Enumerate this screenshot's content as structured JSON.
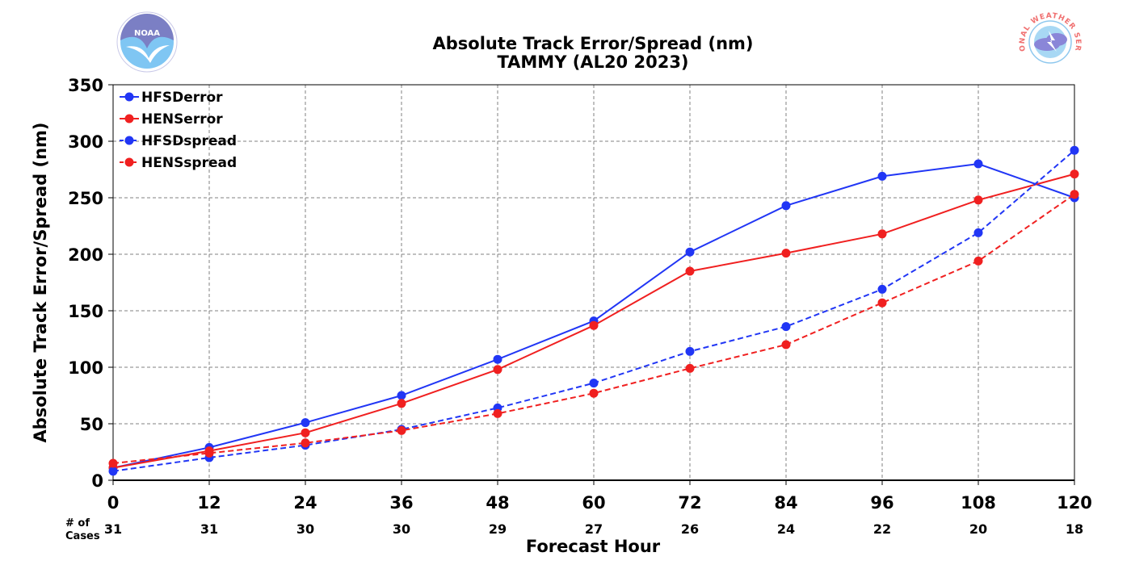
{
  "chart_data": {
    "type": "line",
    "title": "Absolute Track Error/Spread (nm)",
    "subtitle": "TAMMY (AL20 2023)",
    "xlabel": "Forecast Hour",
    "ylabel": "Absolute Track Error/Spread (nm)",
    "x": [
      0,
      12,
      24,
      36,
      48,
      60,
      72,
      84,
      96,
      108,
      120
    ],
    "xticks": [
      "0",
      "12",
      "24",
      "36",
      "48",
      "60",
      "72",
      "84",
      "96",
      "108",
      "120"
    ],
    "yticks": [
      "0",
      "50",
      "100",
      "150",
      "200",
      "250",
      "300",
      "350"
    ],
    "xlim": [
      0,
      120
    ],
    "ylim": [
      0,
      350
    ],
    "grid": true,
    "legend_position": "top-left",
    "cases_label": "# of\nCases",
    "cases": [
      "31",
      "31",
      "30",
      "30",
      "29",
      "27",
      "26",
      "24",
      "22",
      "20",
      "18"
    ],
    "series": [
      {
        "name": "HFSDerror",
        "color": "#2136f5",
        "dash": "solid",
        "values": [
          11,
          29,
          51,
          75,
          107,
          141,
          202,
          243,
          269,
          280,
          250
        ]
      },
      {
        "name": "HENSerror",
        "color": "#f02020",
        "dash": "solid",
        "values": [
          11,
          26,
          42,
          68,
          98,
          137,
          185,
          201,
          218,
          248,
          271
        ]
      },
      {
        "name": "HFSDspread",
        "color": "#2136f5",
        "dash": "dashed",
        "values": [
          8,
          20,
          31,
          45,
          64,
          86,
          114,
          136,
          169,
          219,
          292
        ]
      },
      {
        "name": "HENSspread",
        "color": "#f02020",
        "dash": "dashed",
        "values": [
          15,
          24,
          33,
          44,
          59,
          77,
          99,
          120,
          157,
          194,
          253
        ]
      }
    ]
  },
  "logos": {
    "left": {
      "icon": "noaa-logo",
      "text": "NOAA"
    },
    "right": {
      "icon": "nws-logo",
      "text": "NATIONAL WEATHER SERVICE"
    }
  }
}
